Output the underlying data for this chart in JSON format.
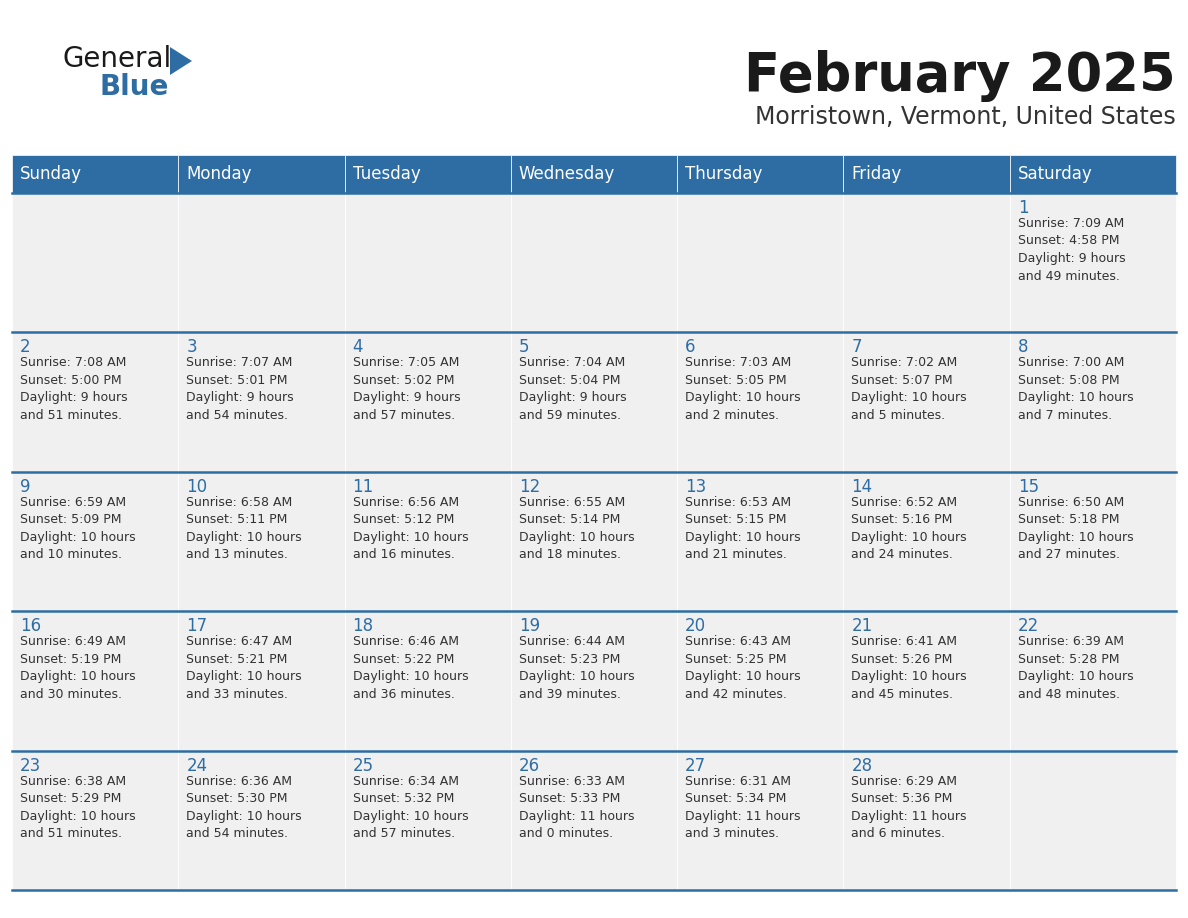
{
  "title": "February 2025",
  "subtitle": "Morristown, Vermont, United States",
  "header_color": "#2E6DA4",
  "header_text_color": "#FFFFFF",
  "background_color": "#FFFFFF",
  "cell_bg": "#F0F0F0",
  "day_headers": [
    "Sunday",
    "Monday",
    "Tuesday",
    "Wednesday",
    "Thursday",
    "Friday",
    "Saturday"
  ],
  "title_color": "#1a1a1a",
  "subtitle_color": "#333333",
  "day_num_color": "#2E6DA4",
  "info_color": "#333333",
  "logo_general_color": "#1a1a1a",
  "logo_blue_color": "#2E6DA4",
  "separator_color": "#2E6DA4",
  "grid_color": "#CCCCCC",
  "weeks": [
    [
      {
        "day": null,
        "info": null
      },
      {
        "day": null,
        "info": null
      },
      {
        "day": null,
        "info": null
      },
      {
        "day": null,
        "info": null
      },
      {
        "day": null,
        "info": null
      },
      {
        "day": null,
        "info": null
      },
      {
        "day": 1,
        "info": "Sunrise: 7:09 AM\nSunset: 4:58 PM\nDaylight: 9 hours\nand 49 minutes."
      }
    ],
    [
      {
        "day": 2,
        "info": "Sunrise: 7:08 AM\nSunset: 5:00 PM\nDaylight: 9 hours\nand 51 minutes."
      },
      {
        "day": 3,
        "info": "Sunrise: 7:07 AM\nSunset: 5:01 PM\nDaylight: 9 hours\nand 54 minutes."
      },
      {
        "day": 4,
        "info": "Sunrise: 7:05 AM\nSunset: 5:02 PM\nDaylight: 9 hours\nand 57 minutes."
      },
      {
        "day": 5,
        "info": "Sunrise: 7:04 AM\nSunset: 5:04 PM\nDaylight: 9 hours\nand 59 minutes."
      },
      {
        "day": 6,
        "info": "Sunrise: 7:03 AM\nSunset: 5:05 PM\nDaylight: 10 hours\nand 2 minutes."
      },
      {
        "day": 7,
        "info": "Sunrise: 7:02 AM\nSunset: 5:07 PM\nDaylight: 10 hours\nand 5 minutes."
      },
      {
        "day": 8,
        "info": "Sunrise: 7:00 AM\nSunset: 5:08 PM\nDaylight: 10 hours\nand 7 minutes."
      }
    ],
    [
      {
        "day": 9,
        "info": "Sunrise: 6:59 AM\nSunset: 5:09 PM\nDaylight: 10 hours\nand 10 minutes."
      },
      {
        "day": 10,
        "info": "Sunrise: 6:58 AM\nSunset: 5:11 PM\nDaylight: 10 hours\nand 13 minutes."
      },
      {
        "day": 11,
        "info": "Sunrise: 6:56 AM\nSunset: 5:12 PM\nDaylight: 10 hours\nand 16 minutes."
      },
      {
        "day": 12,
        "info": "Sunrise: 6:55 AM\nSunset: 5:14 PM\nDaylight: 10 hours\nand 18 minutes."
      },
      {
        "day": 13,
        "info": "Sunrise: 6:53 AM\nSunset: 5:15 PM\nDaylight: 10 hours\nand 21 minutes."
      },
      {
        "day": 14,
        "info": "Sunrise: 6:52 AM\nSunset: 5:16 PM\nDaylight: 10 hours\nand 24 minutes."
      },
      {
        "day": 15,
        "info": "Sunrise: 6:50 AM\nSunset: 5:18 PM\nDaylight: 10 hours\nand 27 minutes."
      }
    ],
    [
      {
        "day": 16,
        "info": "Sunrise: 6:49 AM\nSunset: 5:19 PM\nDaylight: 10 hours\nand 30 minutes."
      },
      {
        "day": 17,
        "info": "Sunrise: 6:47 AM\nSunset: 5:21 PM\nDaylight: 10 hours\nand 33 minutes."
      },
      {
        "day": 18,
        "info": "Sunrise: 6:46 AM\nSunset: 5:22 PM\nDaylight: 10 hours\nand 36 minutes."
      },
      {
        "day": 19,
        "info": "Sunrise: 6:44 AM\nSunset: 5:23 PM\nDaylight: 10 hours\nand 39 minutes."
      },
      {
        "day": 20,
        "info": "Sunrise: 6:43 AM\nSunset: 5:25 PM\nDaylight: 10 hours\nand 42 minutes."
      },
      {
        "day": 21,
        "info": "Sunrise: 6:41 AM\nSunset: 5:26 PM\nDaylight: 10 hours\nand 45 minutes."
      },
      {
        "day": 22,
        "info": "Sunrise: 6:39 AM\nSunset: 5:28 PM\nDaylight: 10 hours\nand 48 minutes."
      }
    ],
    [
      {
        "day": 23,
        "info": "Sunrise: 6:38 AM\nSunset: 5:29 PM\nDaylight: 10 hours\nand 51 minutes."
      },
      {
        "day": 24,
        "info": "Sunrise: 6:36 AM\nSunset: 5:30 PM\nDaylight: 10 hours\nand 54 minutes."
      },
      {
        "day": 25,
        "info": "Sunrise: 6:34 AM\nSunset: 5:32 PM\nDaylight: 10 hours\nand 57 minutes."
      },
      {
        "day": 26,
        "info": "Sunrise: 6:33 AM\nSunset: 5:33 PM\nDaylight: 11 hours\nand 0 minutes."
      },
      {
        "day": 27,
        "info": "Sunrise: 6:31 AM\nSunset: 5:34 PM\nDaylight: 11 hours\nand 3 minutes."
      },
      {
        "day": 28,
        "info": "Sunrise: 6:29 AM\nSunset: 5:36 PM\nDaylight: 11 hours\nand 6 minutes."
      },
      {
        "day": null,
        "info": null
      }
    ]
  ]
}
